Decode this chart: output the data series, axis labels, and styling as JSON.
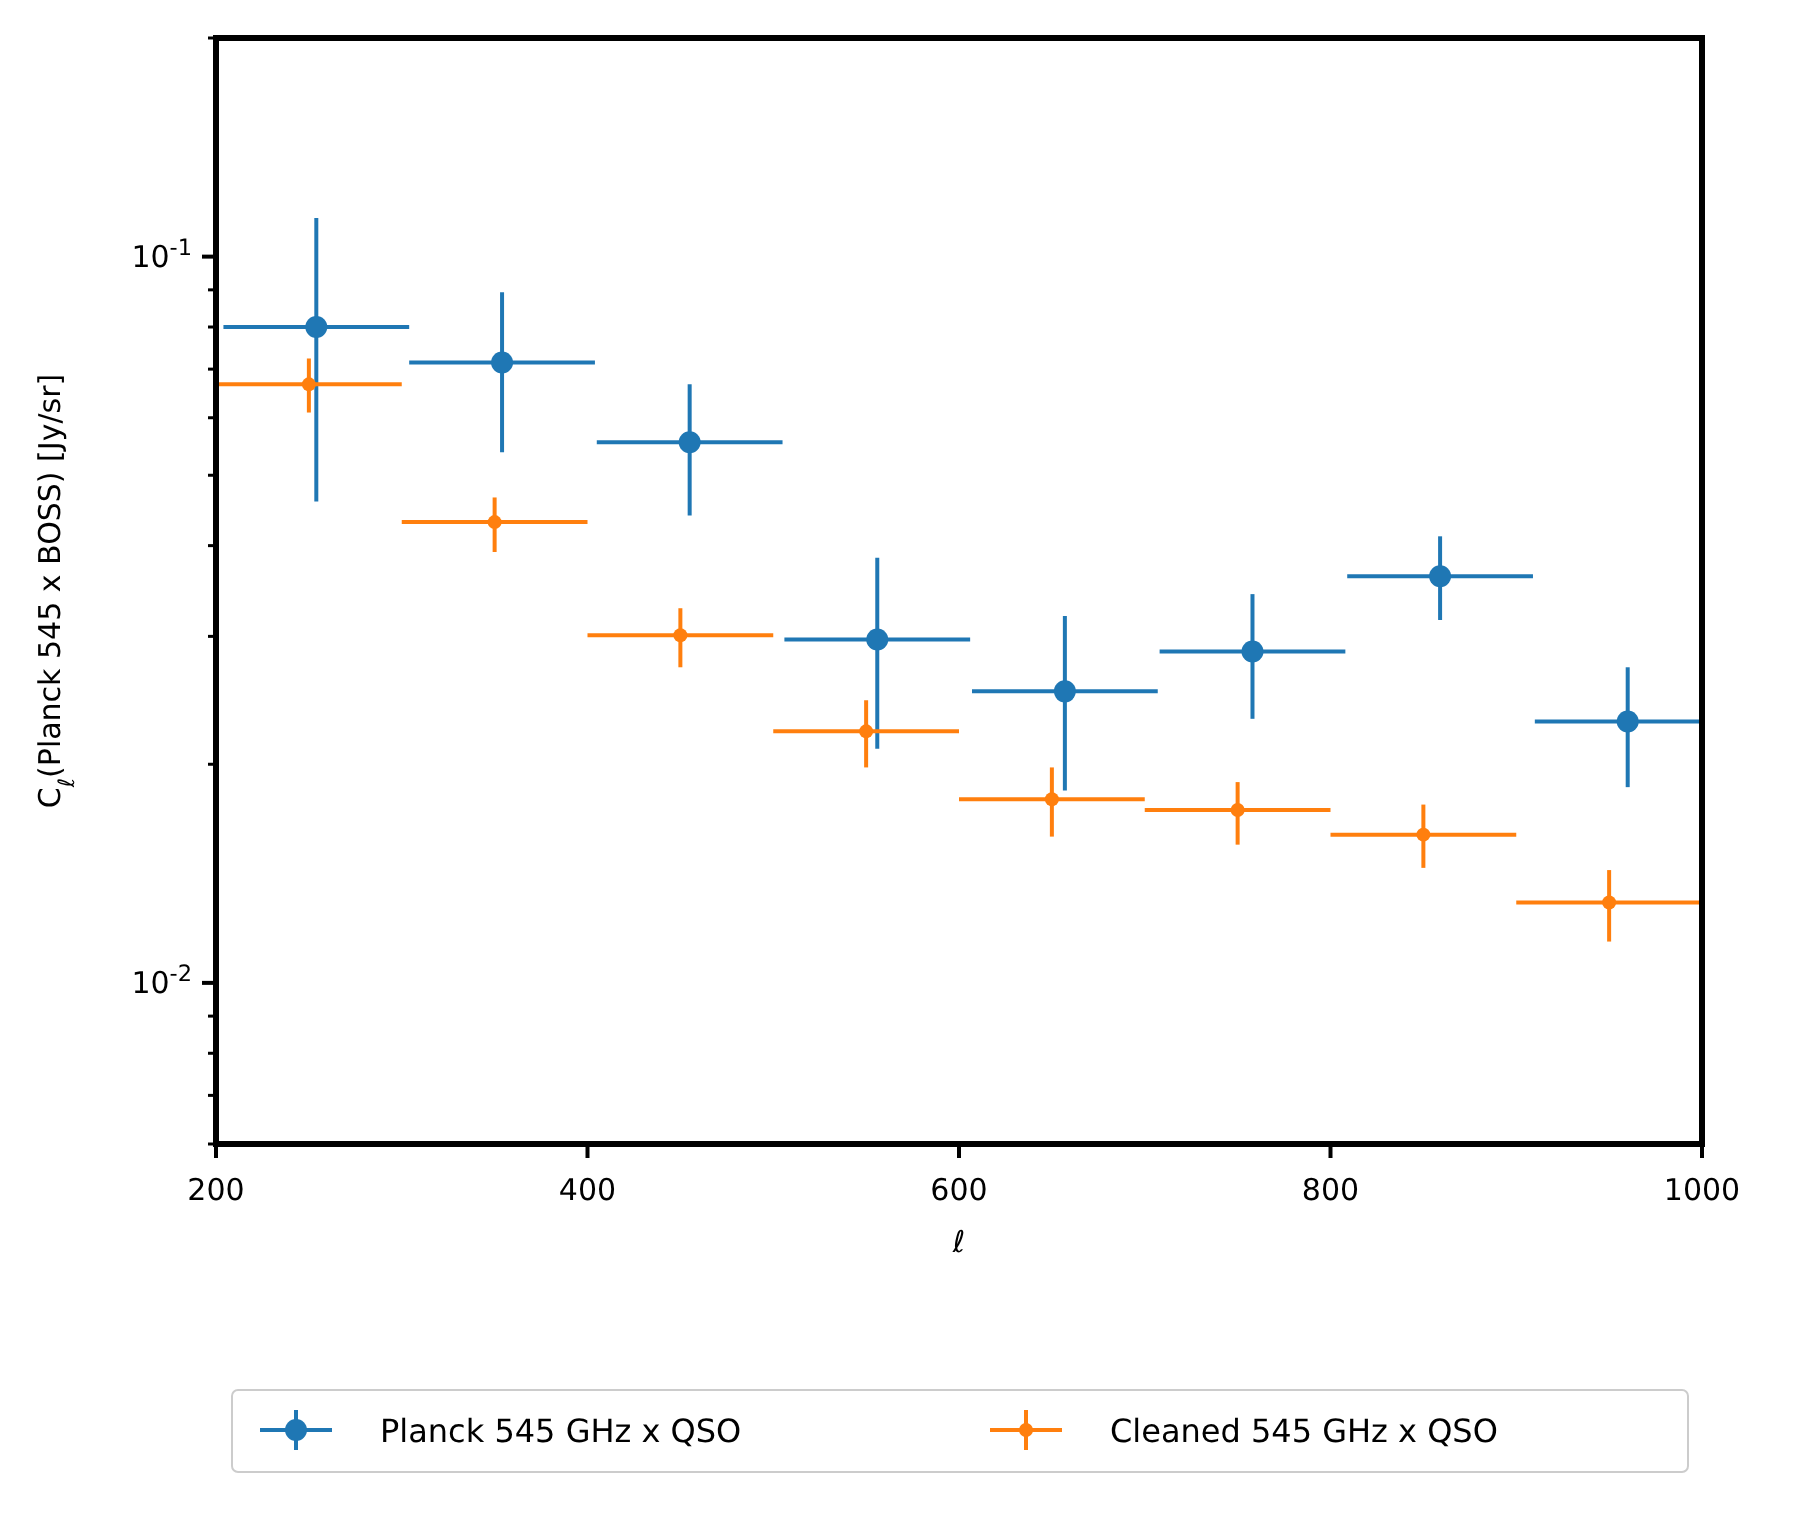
{
  "chart_data": {
    "type": "scatter",
    "xlabel": "ℓ",
    "ylabel": "C$_{ℓ}$(Planck 545 x BOSS) [Jy/sr]",
    "xlim": [
      200,
      1000
    ],
    "xticks": [
      200,
      400,
      600,
      800,
      1000
    ],
    "ylim": [
      0.006,
      0.2
    ],
    "log": "y",
    "yticks": [
      {
        "value": 0.006,
        "label": null
      },
      {
        "value": 0.007,
        "label": null
      },
      {
        "value": 0.008,
        "label": null
      },
      {
        "value": 0.009,
        "label": null
      },
      {
        "value": 0.01,
        "label": "10$^{-2}$"
      },
      {
        "value": 0.02,
        "label": null
      },
      {
        "value": 0.03,
        "label": null
      },
      {
        "value": 0.04,
        "label": null
      },
      {
        "value": 0.05,
        "label": null
      },
      {
        "value": 0.06,
        "label": null
      },
      {
        "value": 0.07,
        "label": null
      },
      {
        "value": 0.08,
        "label": null
      },
      {
        "value": 0.09,
        "label": null
      },
      {
        "value": 0.1,
        "label": "10$^{-1}$"
      },
      {
        "value": 0.2,
        "label": null
      }
    ],
    "grid": false,
    "legend": "bottom",
    "marker": "circle",
    "line_style": "none",
    "series": [
      {
        "name": "Planck 545 GHz x QSO",
        "color": "#1f77b4",
        "x": [
          254,
          354,
          455,
          556,
          657,
          758,
          859,
          960
        ],
        "values": [
          0.08,
          0.0715,
          0.0555,
          0.0297,
          0.0252,
          0.0286,
          0.0363,
          0.0229
        ],
        "errors": [
          [
            0.046,
            0.113
          ],
          [
            0.0538,
            0.0893
          ],
          [
            0.044,
            0.0667
          ],
          [
            0.021,
            0.0385
          ],
          [
            0.0184,
            0.032
          ],
          [
            0.0231,
            0.0343
          ],
          [
            0.0316,
            0.0412
          ],
          [
            0.0186,
            0.0272
          ]
        ],
        "xerrors": [
          50,
          50,
          50,
          50,
          50,
          50,
          50,
          [
            910,
            1000
          ]
        ]
      },
      {
        "name": "Cleaned 545 GHz x QSO",
        "color": "#ff7f0e",
        "x": [
          250,
          350,
          450,
          550,
          650,
          750,
          850,
          950
        ],
        "values": [
          0.0667,
          0.0431,
          0.0301,
          0.0222,
          0.0179,
          0.0173,
          0.016,
          0.0129
        ],
        "errors": [
          [
            0.061,
            0.0724
          ],
          [
            0.0392,
            0.0466
          ],
          [
            0.0272,
            0.0328
          ],
          [
            0.0198,
            0.0245
          ],
          [
            0.0159,
            0.0198
          ],
          [
            0.0155,
            0.0189
          ],
          [
            0.0144,
            0.0176
          ],
          [
            0.0114,
            0.0143
          ]
        ],
        "xerrors": [
          50,
          50,
          50,
          50,
          50,
          50,
          50,
          50
        ]
      }
    ]
  }
}
